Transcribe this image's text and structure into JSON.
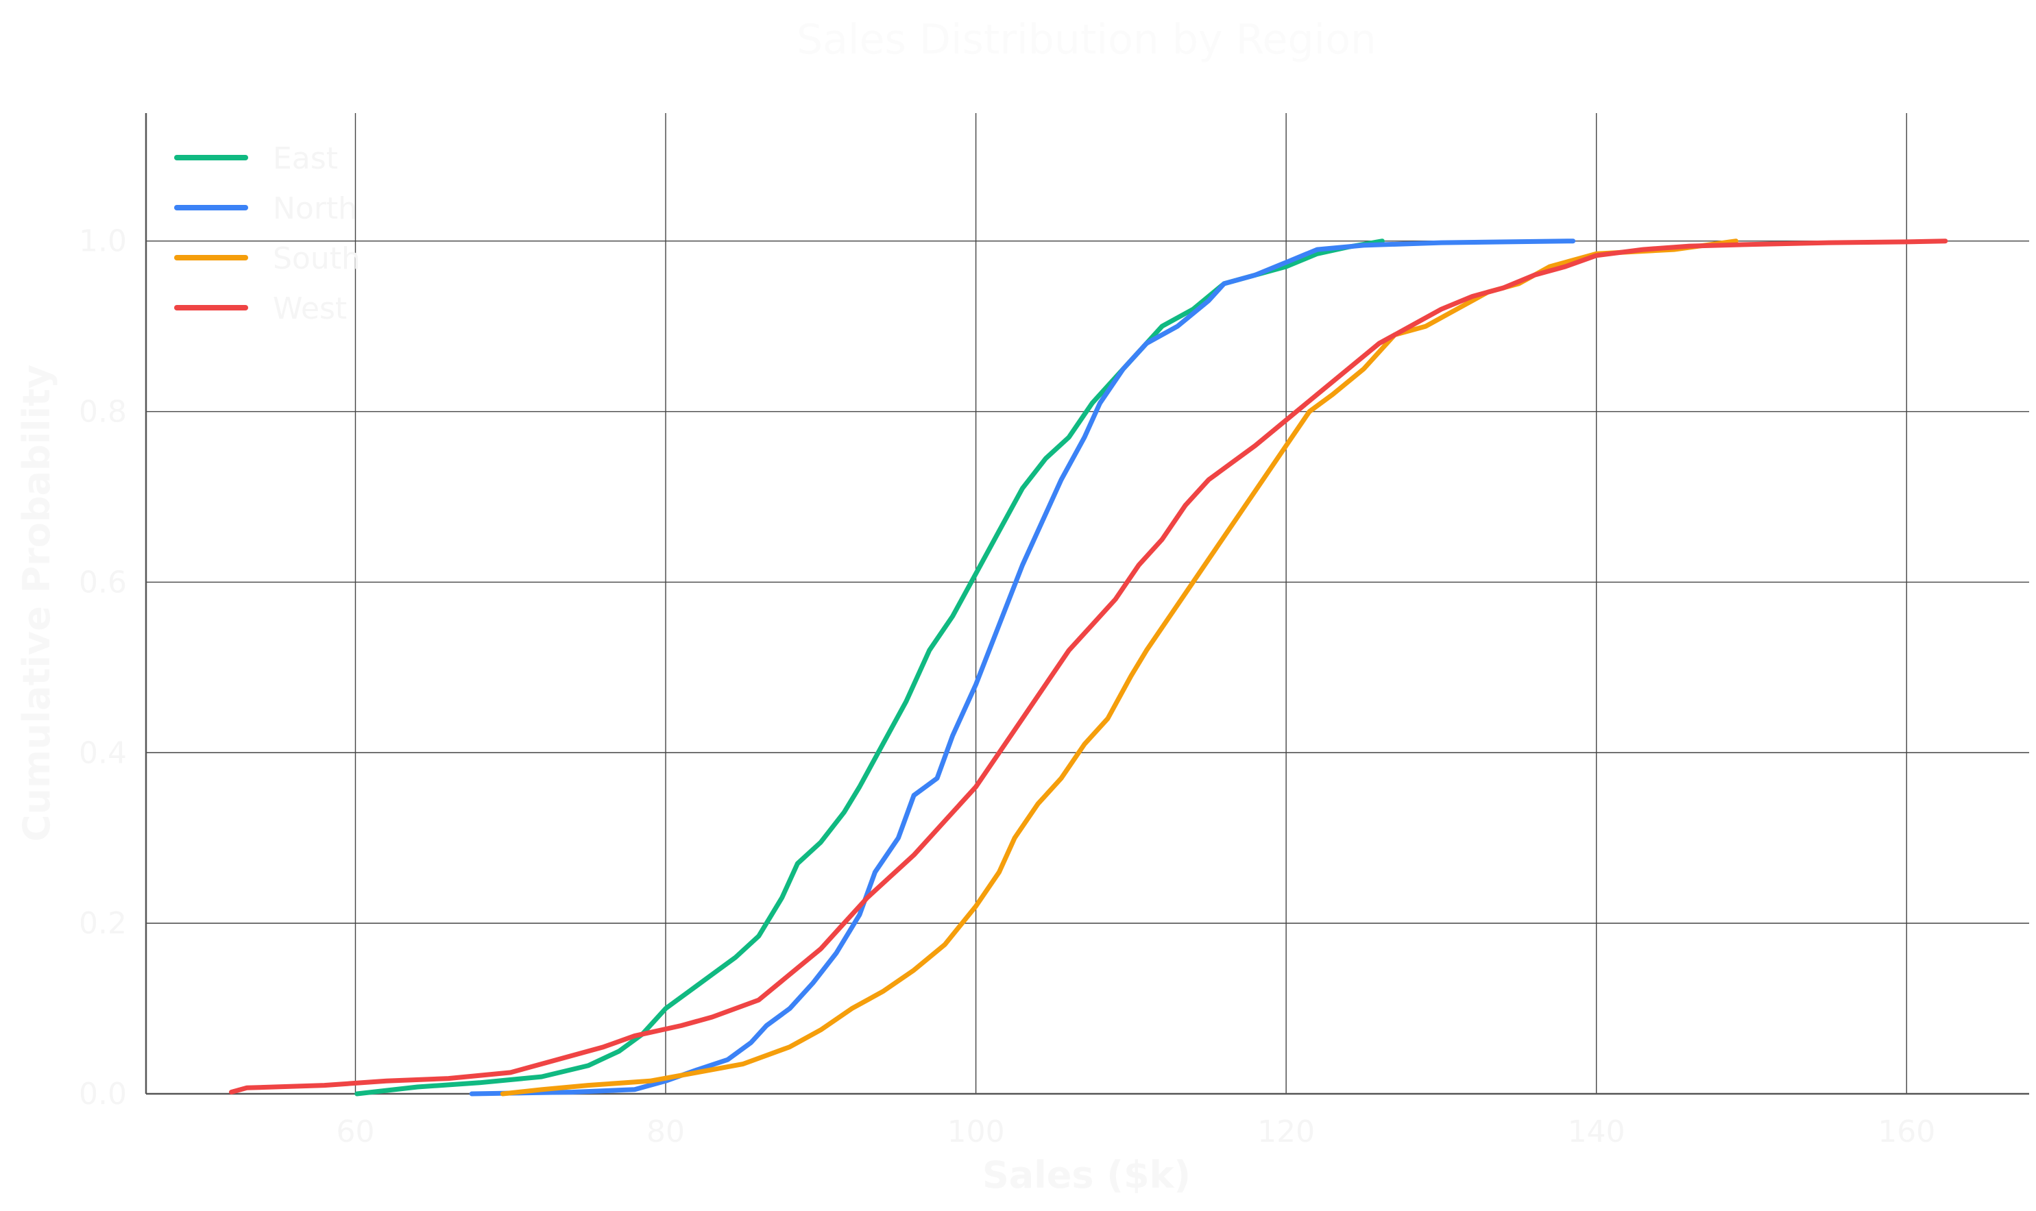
{
  "chart_data": {
    "type": "line",
    "title": "Sales Distribution by Region",
    "xlabel": "Sales ($k)",
    "ylabel": "Cumulative Probability",
    "xlim": [
      46.5,
      167.9
    ],
    "ylim": [
      0,
      1.15
    ],
    "xticks": [
      60,
      80,
      100,
      120,
      140,
      160
    ],
    "yticks": [
      0.0,
      0.2,
      0.4,
      0.6,
      0.8,
      1.0
    ],
    "xtick_labels": [
      "60",
      "80",
      "100",
      "120",
      "140",
      "160"
    ],
    "ytick_labels": [
      "0.0",
      "0.2",
      "0.4",
      "0.6",
      "0.8",
      "1.0"
    ],
    "grid": true,
    "legend_position": "top-left",
    "series": [
      {
        "name": "East",
        "color": "#10b981",
        "points": [
          [
            60.1,
            0.0
          ],
          [
            64,
            0.008
          ],
          [
            68,
            0.013
          ],
          [
            72,
            0.02
          ],
          [
            75,
            0.033
          ],
          [
            77,
            0.05
          ],
          [
            78.5,
            0.07
          ],
          [
            80,
            0.1
          ],
          [
            81.5,
            0.12
          ],
          [
            83,
            0.14
          ],
          [
            84.5,
            0.16
          ],
          [
            86,
            0.185
          ],
          [
            87.5,
            0.23
          ],
          [
            88.5,
            0.27
          ],
          [
            90,
            0.295
          ],
          [
            91.5,
            0.33
          ],
          [
            92.5,
            0.36
          ],
          [
            94,
            0.41
          ],
          [
            95.5,
            0.46
          ],
          [
            97,
            0.52
          ],
          [
            98.5,
            0.56
          ],
          [
            100,
            0.61
          ],
          [
            101.5,
            0.66
          ],
          [
            103,
            0.71
          ],
          [
            104.5,
            0.745
          ],
          [
            106,
            0.77
          ],
          [
            107.5,
            0.81
          ],
          [
            109,
            0.84
          ],
          [
            110.5,
            0.87
          ],
          [
            112,
            0.9
          ],
          [
            114,
            0.92
          ],
          [
            116,
            0.95
          ],
          [
            118,
            0.96
          ],
          [
            120,
            0.97
          ],
          [
            122,
            0.985
          ],
          [
            124,
            0.993
          ],
          [
            126.2,
            1.0
          ]
        ]
      },
      {
        "name": "North",
        "color": "#3b82f6",
        "points": [
          [
            67.5,
            0.0
          ],
          [
            74,
            0.002
          ],
          [
            78,
            0.005
          ],
          [
            80,
            0.015
          ],
          [
            82,
            0.028
          ],
          [
            84,
            0.04
          ],
          [
            85.5,
            0.06
          ],
          [
            86.5,
            0.08
          ],
          [
            88,
            0.1
          ],
          [
            89.5,
            0.13
          ],
          [
            91,
            0.165
          ],
          [
            92.5,
            0.21
          ],
          [
            93.5,
            0.26
          ],
          [
            95,
            0.3
          ],
          [
            96,
            0.35
          ],
          [
            97.5,
            0.37
          ],
          [
            98.5,
            0.42
          ],
          [
            100,
            0.48
          ],
          [
            101.5,
            0.55
          ],
          [
            103,
            0.62
          ],
          [
            104,
            0.66
          ],
          [
            105.5,
            0.72
          ],
          [
            107,
            0.77
          ],
          [
            108,
            0.81
          ],
          [
            109.5,
            0.85
          ],
          [
            111,
            0.88
          ],
          [
            113,
            0.9
          ],
          [
            115,
            0.93
          ],
          [
            116,
            0.95
          ],
          [
            118,
            0.96
          ],
          [
            120,
            0.975
          ],
          [
            122,
            0.99
          ],
          [
            125,
            0.995
          ],
          [
            130,
            0.998
          ],
          [
            138.5,
            1.0
          ]
        ]
      },
      {
        "name": "South",
        "color": "#f59e0b",
        "points": [
          [
            69.5,
            0.0
          ],
          [
            72,
            0.005
          ],
          [
            75,
            0.01
          ],
          [
            79,
            0.015
          ],
          [
            82,
            0.025
          ],
          [
            85,
            0.035
          ],
          [
            88,
            0.055
          ],
          [
            90,
            0.075
          ],
          [
            92,
            0.1
          ],
          [
            94,
            0.12
          ],
          [
            96,
            0.145
          ],
          [
            98,
            0.175
          ],
          [
            100,
            0.22
          ],
          [
            101.5,
            0.26
          ],
          [
            102.5,
            0.3
          ],
          [
            104,
            0.34
          ],
          [
            105.5,
            0.37
          ],
          [
            107,
            0.41
          ],
          [
            108.5,
            0.44
          ],
          [
            110,
            0.49
          ],
          [
            111,
            0.52
          ],
          [
            112.5,
            0.56
          ],
          [
            114,
            0.6
          ],
          [
            115.5,
            0.64
          ],
          [
            117,
            0.68
          ],
          [
            118.5,
            0.72
          ],
          [
            120,
            0.76
          ],
          [
            121.5,
            0.8
          ],
          [
            123,
            0.82
          ],
          [
            125,
            0.85
          ],
          [
            127,
            0.89
          ],
          [
            129,
            0.9
          ],
          [
            131,
            0.92
          ],
          [
            133,
            0.94
          ],
          [
            135,
            0.95
          ],
          [
            137,
            0.97
          ],
          [
            140,
            0.985
          ],
          [
            145,
            0.99
          ],
          [
            149,
            1.0
          ]
        ]
      },
      {
        "name": "West",
        "color": "#ef4444",
        "points": [
          [
            52,
            0.002
          ],
          [
            53,
            0.007
          ],
          [
            58,
            0.01
          ],
          [
            62,
            0.015
          ],
          [
            66,
            0.018
          ],
          [
            70,
            0.025
          ],
          [
            73,
            0.04
          ],
          [
            76,
            0.055
          ],
          [
            78,
            0.068
          ],
          [
            81,
            0.08
          ],
          [
            83,
            0.09
          ],
          [
            86,
            0.11
          ],
          [
            88,
            0.14
          ],
          [
            90,
            0.17
          ],
          [
            91.5,
            0.2
          ],
          [
            93,
            0.23
          ],
          [
            94.5,
            0.255
          ],
          [
            96,
            0.28
          ],
          [
            98,
            0.32
          ],
          [
            100,
            0.36
          ],
          [
            101.5,
            0.4
          ],
          [
            103,
            0.44
          ],
          [
            104.5,
            0.48
          ],
          [
            106,
            0.52
          ],
          [
            107.5,
            0.55
          ],
          [
            109,
            0.58
          ],
          [
            110.5,
            0.62
          ],
          [
            112,
            0.65
          ],
          [
            113.5,
            0.69
          ],
          [
            115,
            0.72
          ],
          [
            116.5,
            0.74
          ],
          [
            118,
            0.76
          ],
          [
            120,
            0.79
          ],
          [
            122,
            0.82
          ],
          [
            124,
            0.85
          ],
          [
            126,
            0.88
          ],
          [
            128,
            0.9
          ],
          [
            130,
            0.92
          ],
          [
            132,
            0.935
          ],
          [
            134,
            0.945
          ],
          [
            136,
            0.96
          ],
          [
            138,
            0.97
          ],
          [
            140,
            0.983
          ],
          [
            143,
            0.99
          ],
          [
            146,
            0.994
          ],
          [
            150,
            0.996
          ],
          [
            155,
            0.998
          ],
          [
            160,
            0.999
          ],
          [
            162.5,
            1.0
          ]
        ]
      }
    ]
  }
}
